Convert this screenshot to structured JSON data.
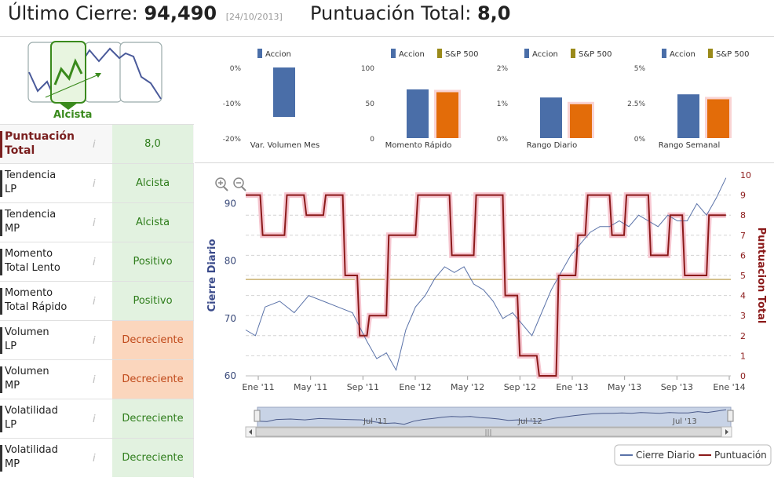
{
  "header": {
    "last_close_label": "Último Cierre:",
    "last_close_value": "94,490",
    "last_close_date": "[24/10/2013]",
    "total_score_label": "Puntuación Total:",
    "total_score_value": "8,0"
  },
  "trend": {
    "label": "Alcista"
  },
  "rows": [
    {
      "label": "Puntuación\nTotal",
      "value": "8,0",
      "kind": "pos"
    },
    {
      "label": "Tendencia\nLP",
      "value": "Alcista",
      "kind": "pos"
    },
    {
      "label": "Tendencia\nMP",
      "value": "Alcista",
      "kind": "pos"
    },
    {
      "label": "Momento\nTotal Lento",
      "value": "Positivo",
      "kind": "pos"
    },
    {
      "label": "Momento\nTotal Rápido",
      "value": "Positivo",
      "kind": "pos"
    },
    {
      "label": "Volumen\nLP",
      "value": "Decreciente",
      "kind": "neg"
    },
    {
      "label": "Volumen\nMP",
      "value": "Decreciente",
      "kind": "neg"
    },
    {
      "label": "Volatilidad\nLP",
      "value": "Decreciente",
      "kind": "pos"
    },
    {
      "label": "Volatilidad\nMP",
      "value": "Decreciente",
      "kind": "pos"
    }
  ],
  "info_glyph": "i",
  "colors": {
    "accion": "#4a6ea8",
    "sp500": "#e36c09",
    "sp500_legend": "#9a8a1a",
    "cierre": "#5a72a8",
    "puntuacion": "#8b1a1a",
    "pos_bg": "#e2f2e0",
    "neg_bg": "#fbd6bd"
  },
  "chart_data": [
    {
      "type": "bar",
      "title": "",
      "xlabel": "Var. Volumen Mes",
      "series": [
        {
          "name": "Accion",
          "values": [
            -14
          ]
        }
      ],
      "yticks": [
        "0%",
        "-10%",
        "-20%"
      ],
      "ylim": [
        -20,
        0
      ]
    },
    {
      "type": "bar",
      "xlabel": "Momento Rápido",
      "series": [
        {
          "name": "Accion",
          "values": [
            69
          ]
        },
        {
          "name": "S&P 500",
          "values": [
            65
          ]
        }
      ],
      "yticks": [
        "100",
        "50",
        "0"
      ],
      "ylim": [
        0,
        100
      ]
    },
    {
      "type": "bar",
      "xlabel": "Rango Diario",
      "series": [
        {
          "name": "Accion",
          "values": [
            1.15
          ]
        },
        {
          "name": "S&P 500",
          "values": [
            0.96
          ]
        }
      ],
      "yticks": [
        "2%",
        "1%",
        "0%"
      ],
      "ylim": [
        0,
        2
      ]
    },
    {
      "type": "bar",
      "xlabel": "Rango Semanal",
      "series": [
        {
          "name": "Accion",
          "values": [
            3.1
          ]
        },
        {
          "name": "S&P 500",
          "values": [
            2.75
          ]
        }
      ],
      "yticks": [
        "5%",
        "2.5%",
        "0%"
      ],
      "ylim": [
        0,
        5
      ]
    },
    {
      "type": "line",
      "xticks": [
        "Ene '11",
        "May '11",
        "Sep '11",
        "Ene '12",
        "May '12",
        "Sep '12",
        "Ene '13",
        "May '13",
        "Sep '13",
        "Ene '14"
      ],
      "ylabel": "Cierre Diario",
      "ylabel2": "Puntuacion Total",
      "ylim": [
        60,
        95
      ],
      "ylim2": [
        0,
        10
      ],
      "yticks": [
        "90",
        "80",
        "70",
        "60"
      ],
      "yticks2": [
        "10",
        "9",
        "8",
        "7",
        "6",
        "5",
        "4",
        "3",
        "2",
        "1",
        "0"
      ],
      "navigator_labels": [
        "Jul '11",
        "Jul '12",
        "Jul '13"
      ],
      "legend": [
        "Cierre Diario",
        "Puntuación"
      ],
      "series": [
        {
          "name": "Cierre Diario",
          "t": [
            0,
            0.02,
            0.04,
            0.07,
            0.1,
            0.13,
            0.16,
            0.19,
            0.22,
            0.25,
            0.27,
            0.29,
            0.31,
            0.33,
            0.35,
            0.37,
            0.39,
            0.41,
            0.43,
            0.45,
            0.47,
            0.49,
            0.51,
            0.53,
            0.55,
            0.57,
            0.59,
            0.61,
            0.63,
            0.65,
            0.67,
            0.69,
            0.71,
            0.73,
            0.75,
            0.77,
            0.79,
            0.81,
            0.83,
            0.85,
            0.87,
            0.89,
            0.91,
            0.93,
            0.95,
            0.97,
            0.99
          ],
          "values": [
            68,
            67,
            72,
            73,
            71,
            74,
            73,
            72,
            71,
            66,
            63,
            64,
            61,
            68,
            72,
            74,
            77,
            79,
            78,
            79,
            76,
            75,
            73,
            70,
            71,
            69,
            67,
            71,
            75,
            78,
            81,
            83,
            85,
            86,
            86,
            87,
            86,
            88,
            87,
            86,
            88,
            87,
            87,
            90,
            88,
            91,
            94.5
          ]
        },
        {
          "name": "Puntuación",
          "t": [
            0,
            0.03,
            0.035,
            0.08,
            0.085,
            0.12,
            0.125,
            0.16,
            0.165,
            0.2,
            0.205,
            0.23,
            0.235,
            0.25,
            0.255,
            0.29,
            0.295,
            0.35,
            0.355,
            0.37,
            0.375,
            0.42,
            0.425,
            0.47,
            0.475,
            0.53,
            0.535,
            0.56,
            0.565,
            0.6,
            0.605,
            0.64,
            0.645,
            0.68,
            0.685,
            0.7,
            0.705,
            0.75,
            0.755,
            0.78,
            0.785,
            0.83,
            0.835,
            0.87,
            0.875,
            0.9,
            0.905,
            0.95,
            0.955,
            0.99
          ],
          "values": [
            9,
            9,
            7,
            7,
            9,
            9,
            8,
            8,
            9,
            9,
            5,
            5,
            2,
            2,
            3,
            3,
            7,
            7,
            9,
            9,
            9,
            9,
            6,
            6,
            9,
            9,
            4,
            4,
            1,
            1,
            0,
            0,
            5,
            5,
            7,
            7,
            9,
            9,
            7,
            7,
            9,
            9,
            6,
            6,
            8,
            8,
            5,
            5,
            8,
            8
          ]
        }
      ],
      "threshold": 4.8
    }
  ]
}
